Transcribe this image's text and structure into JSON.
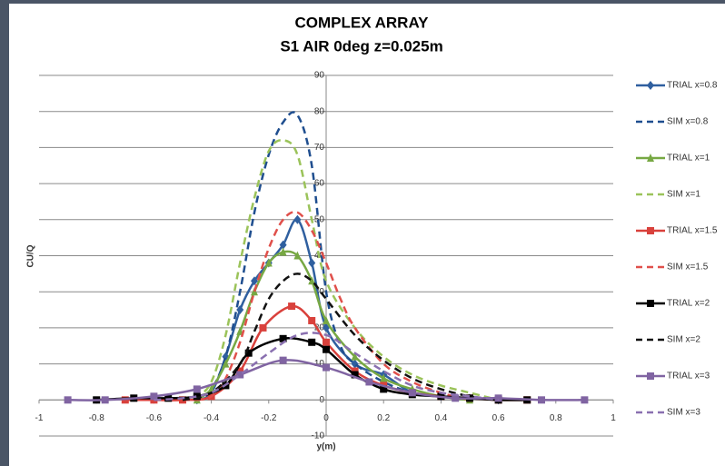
{
  "chart_data": {
    "type": "line",
    "title": "COMPLEX ARRAY",
    "subtitle": "S1 AIR 0deg z=0.025m",
    "x_label": "y(m)",
    "y_label": "CU/Q",
    "xlim": [
      -1,
      1
    ],
    "xticks": [
      -1,
      -0.8,
      -0.6,
      -0.4,
      -0.2,
      0,
      0.2,
      0.4,
      0.6,
      0.8,
      1
    ],
    "ylim": [
      -10,
      90
    ],
    "yticks": [
      -10,
      0,
      10,
      20,
      30,
      40,
      50,
      60,
      70,
      80,
      90
    ],
    "grid": true,
    "legend": "right",
    "series": [
      {
        "name": "TRIAL x=0.8",
        "color": "#2f5f9f",
        "dash": false,
        "marker": "diamond",
        "x": [
          -0.45,
          -0.4,
          -0.35,
          -0.3,
          -0.25,
          -0.2,
          -0.15,
          -0.1,
          -0.05,
          0,
          0.1,
          0.2,
          0.3,
          0.4,
          0.5,
          0.6
        ],
        "values": [
          0,
          2,
          12,
          25,
          33,
          38,
          43,
          50,
          38,
          20,
          10,
          7,
          2,
          1,
          0.5,
          0
        ]
      },
      {
        "name": "SIM x=0.8",
        "color": "#1f4e8f",
        "dash": true,
        "marker": "none",
        "x": [
          -0.5,
          -0.45,
          -0.4,
          -0.35,
          -0.3,
          -0.25,
          -0.2,
          -0.15,
          -0.1,
          -0.05,
          0,
          0.05,
          0.1,
          0.2,
          0.3,
          0.4,
          0.5
        ],
        "values": [
          0,
          0.5,
          3,
          12,
          30,
          52,
          68,
          77,
          79,
          65,
          30,
          15,
          10,
          5,
          2,
          1,
          0
        ]
      },
      {
        "name": "TRIAL x=1",
        "color": "#77a843",
        "dash": false,
        "marker": "triangle",
        "x": [
          -0.45,
          -0.4,
          -0.35,
          -0.3,
          -0.25,
          -0.2,
          -0.15,
          -0.1,
          -0.05,
          0,
          0.1,
          0.2,
          0.3,
          0.4,
          0.5
        ],
        "values": [
          0,
          3,
          10,
          19,
          30,
          38,
          41,
          40,
          33,
          22,
          12,
          6,
          3,
          1,
          0
        ]
      },
      {
        "name": "SIM x=1",
        "color": "#9bc35a",
        "dash": true,
        "marker": "none",
        "x": [
          -0.5,
          -0.45,
          -0.4,
          -0.35,
          -0.3,
          -0.25,
          -0.2,
          -0.15,
          -0.1,
          -0.05,
          0,
          0.1,
          0.2,
          0.3,
          0.4,
          0.5,
          0.6
        ],
        "values": [
          0,
          1,
          5,
          18,
          38,
          56,
          69,
          72,
          68,
          50,
          33,
          20,
          12,
          7,
          4,
          2,
          0
        ]
      },
      {
        "name": "TRIAL x=1.5",
        "color": "#d9413c",
        "dash": false,
        "marker": "square",
        "x": [
          -0.7,
          -0.6,
          -0.5,
          -0.4,
          -0.3,
          -0.22,
          -0.12,
          -0.05,
          0,
          0.1,
          0.2,
          0.3,
          0.4,
          0.5,
          0.6,
          0.7
        ],
        "values": [
          0,
          0,
          0,
          1,
          8,
          20,
          26,
          22,
          16,
          8,
          4,
          2,
          1,
          0.5,
          0,
          0
        ]
      },
      {
        "name": "SIM x=1.5",
        "color": "#e0504b",
        "dash": true,
        "marker": "none",
        "x": [
          -0.45,
          -0.4,
          -0.35,
          -0.3,
          -0.25,
          -0.2,
          -0.15,
          -0.1,
          -0.05,
          0,
          0.05,
          0.1,
          0.2,
          0.3,
          0.4,
          0.5
        ],
        "values": [
          0,
          1,
          6,
          16,
          30,
          42,
          50,
          52,
          47,
          38,
          28,
          20,
          10,
          5,
          2,
          0
        ]
      },
      {
        "name": "TRIAL x=2",
        "color": "#000000",
        "dash": false,
        "marker": "square",
        "x": [
          -0.8,
          -0.67,
          -0.55,
          -0.45,
          -0.35,
          -0.27,
          -0.15,
          -0.05,
          0,
          0.1,
          0.2,
          0.3,
          0.4,
          0.5,
          0.6,
          0.7
        ],
        "values": [
          0,
          0.5,
          0.5,
          1,
          4,
          13,
          17,
          16,
          14,
          7,
          3,
          1.5,
          1,
          0.5,
          0,
          0
        ]
      },
      {
        "name": "SIM x=2",
        "color": "#111111",
        "dash": true,
        "marker": "none",
        "x": [
          -0.5,
          -0.4,
          -0.3,
          -0.25,
          -0.2,
          -0.15,
          -0.1,
          -0.05,
          0,
          0.1,
          0.2,
          0.3,
          0.4,
          0.5,
          0.6
        ],
        "values": [
          0,
          2,
          10,
          19,
          28,
          33,
          35,
          33,
          28,
          18,
          11,
          6,
          3,
          1,
          0
        ]
      },
      {
        "name": "TRIAL x=3",
        "color": "#8064a2",
        "dash": false,
        "marker": "square",
        "x": [
          -0.9,
          -0.77,
          -0.6,
          -0.45,
          -0.3,
          -0.15,
          0,
          0.15,
          0.3,
          0.45,
          0.6,
          0.75,
          0.9
        ],
        "values": [
          0,
          0,
          1,
          3,
          7,
          11,
          9,
          5,
          2,
          0.5,
          0.5,
          0,
          0
        ]
      },
      {
        "name": "SIM x=3",
        "color": "#8a70b0",
        "dash": true,
        "marker": "none",
        "x": [
          -0.6,
          -0.5,
          -0.4,
          -0.3,
          -0.2,
          -0.1,
          0,
          0.1,
          0.2,
          0.3,
          0.4,
          0.5,
          0.6
        ],
        "values": [
          0,
          0.5,
          2,
          7,
          13,
          18,
          18,
          13,
          8,
          4,
          2,
          1,
          0
        ]
      }
    ]
  }
}
